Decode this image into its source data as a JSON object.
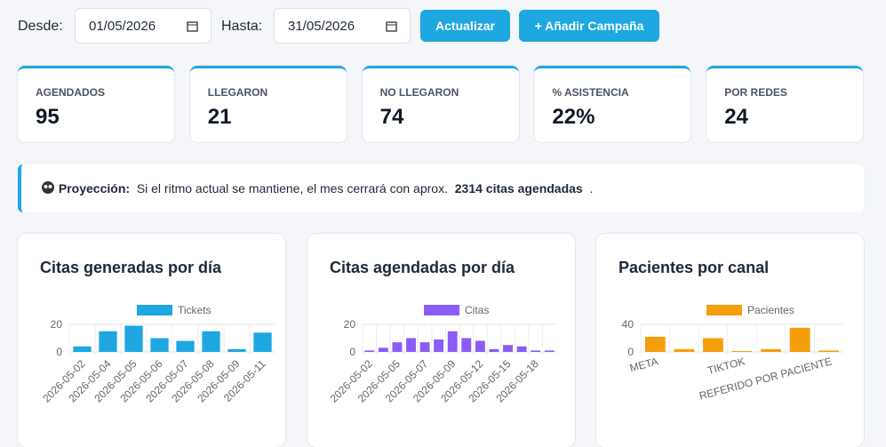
{
  "filters": {
    "from_label": "Desde:",
    "from_value": "01/05/2026",
    "to_label": "Hasta:",
    "to_value": "31/05/2026",
    "buttons": [
      "Actualizar",
      "+ Añadir Campaña"
    ]
  },
  "kpis": [
    {
      "label": "AGENDADOS",
      "value": "95"
    },
    {
      "label": "LLEGARON",
      "value": "21"
    },
    {
      "label": "NO LLEGARON",
      "value": "74"
    },
    {
      "label": "% ASISTENCIA",
      "value": "22%"
    },
    {
      "label": "POR REDES",
      "value": "24"
    }
  ],
  "projection": {
    "label": "Proyección:",
    "text": "Si el ritmo actual se mantiene, el mes cerrará con aprox.",
    "highlight": "2314 citas agendadas",
    "end": "."
  },
  "chart_data": [
    {
      "type": "bar",
      "title": "Citas generadas por día",
      "categories": [
        "2026-05-02",
        "2026-05-04",
        "2026-05-05",
        "2026-05-06",
        "2026-05-07",
        "2026-05-08",
        "2026-05-09",
        "2026-05-11"
      ],
      "series": [
        {
          "name": "Tickets",
          "color": "#1ea7e1",
          "values": [
            4,
            15,
            19,
            10,
            8,
            15,
            2,
            14
          ]
        }
      ],
      "ylim": [
        0,
        20
      ],
      "yticks": [
        0,
        20
      ],
      "grid": true
    },
    {
      "type": "bar",
      "title": "Citas agendadas por día",
      "categories": [
        "2026-05-02",
        null,
        "2026-05-05",
        null,
        "2026-05-07",
        null,
        "2026-05-09",
        null,
        "2026-05-12",
        null,
        "2026-05-15",
        null,
        "2026-05-18",
        null
      ],
      "series": [
        {
          "name": "Citas",
          "color": "#8b5cf6",
          "values": [
            1,
            3,
            7,
            10,
            7,
            9,
            15,
            10,
            8,
            2,
            5,
            4,
            1,
            1
          ]
        }
      ],
      "ylim": [
        0,
        20
      ],
      "yticks": [
        0,
        20
      ],
      "grid": true
    },
    {
      "type": "bar",
      "title": "Pacientes por canal",
      "categories": [
        "META",
        null,
        null,
        "TIKTOK",
        null,
        null,
        "REFERIDO POR PACIENTE"
      ],
      "series": [
        {
          "name": "Pacientes",
          "color": "#f59e0b",
          "values": [
            22,
            4,
            20,
            0,
            4,
            35,
            2
          ]
        }
      ],
      "ylim": [
        0,
        40
      ],
      "yticks": [
        0,
        40
      ],
      "grid": true
    }
  ]
}
